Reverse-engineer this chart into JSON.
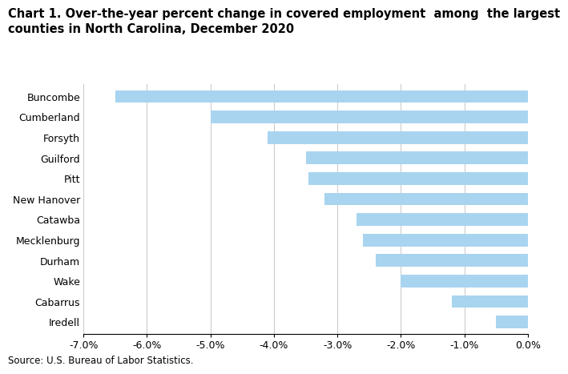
{
  "title_line1": "Chart 1. Over-the-year percent change in covered employment  among  the largest",
  "title_line2": "counties in North Carolina, December 2020",
  "categories": [
    "Buncombe",
    "Cumberland",
    "Forsyth",
    "Guilford",
    "Pitt",
    "New Hanover",
    "Catawba",
    "Mecklenburg",
    "Durham",
    "Wake",
    "Cabarrus",
    "Iredell"
  ],
  "values": [
    -6.5,
    -5.0,
    -4.1,
    -3.5,
    -3.45,
    -3.2,
    -2.7,
    -2.6,
    -2.4,
    -2.0,
    -1.2,
    -0.5
  ],
  "bar_color": "#a8d4f0",
  "xlim": [
    -7.0,
    0.0
  ],
  "xticks": [
    -7.0,
    -6.0,
    -5.0,
    -4.0,
    -3.0,
    -2.0,
    -1.0,
    0.0
  ],
  "source_text": "Source: U.S. Bureau of Labor Statistics.",
  "title_fontsize": 10.5,
  "tick_fontsize": 9,
  "bar_height": 0.62,
  "grid_color": "#cccccc",
  "background_color": "#ffffff",
  "spine_color": "#000000"
}
